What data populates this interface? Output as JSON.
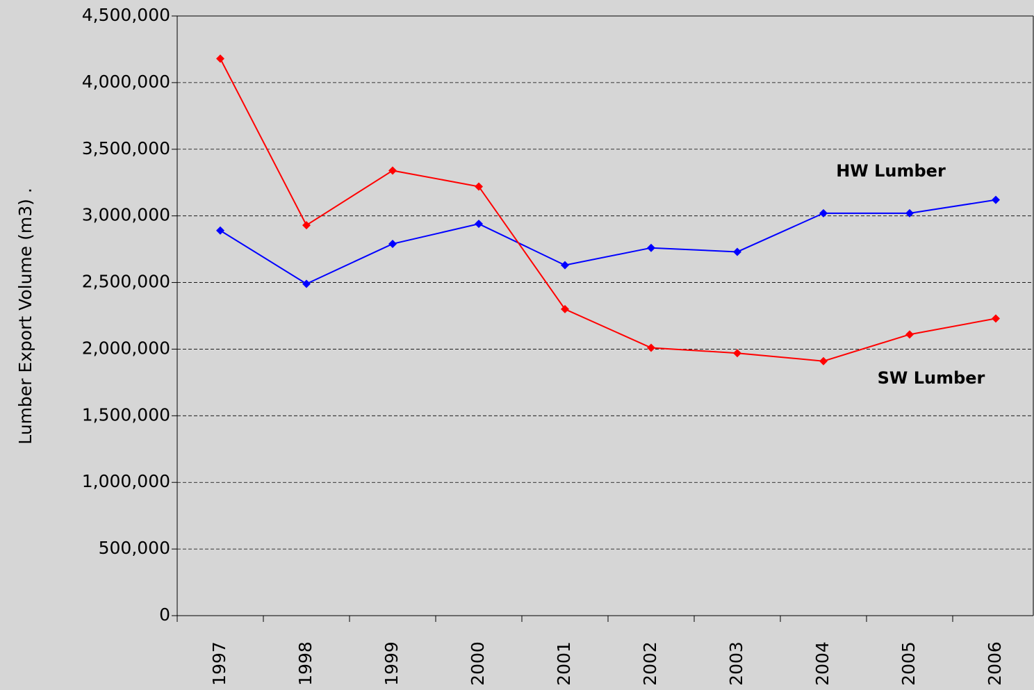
{
  "chart_data": {
    "type": "line",
    "y_label": "Lumber Export Volume (m3)   .",
    "categories": [
      "1997",
      "1998",
      "1999",
      "2000",
      "2001",
      "2002",
      "2003",
      "2004",
      "2005",
      "2006"
    ],
    "series": [
      {
        "name": "HW Lumber",
        "color": "#0000ff",
        "values": [
          2890000,
          2490000,
          2790000,
          2940000,
          2630000,
          2760000,
          2730000,
          3020000,
          3020000,
          3120000
        ]
      },
      {
        "name": "SW Lumber",
        "color": "#ff0000",
        "values": [
          4180000,
          2930000,
          3340000,
          3220000,
          2300000,
          2010000,
          1970000,
          1910000,
          2110000,
          2230000
        ]
      }
    ],
    "ylim": [
      0,
      4500000
    ],
    "yticks": [
      {
        "value": 0,
        "label": "0"
      },
      {
        "value": 500000,
        "label": "500,000"
      },
      {
        "value": 1000000,
        "label": "1,000,000"
      },
      {
        "value": 1500000,
        "label": "1,500,000"
      },
      {
        "value": 2000000,
        "label": "2,000,000"
      },
      {
        "value": 2500000,
        "label": "2,500,000"
      },
      {
        "value": 3000000,
        "label": "3,000,000"
      },
      {
        "value": 3500000,
        "label": "3,500,000"
      },
      {
        "value": 4000000,
        "label": "4,000,000"
      },
      {
        "value": 4500000,
        "label": "4,500,000"
      }
    ],
    "grid": true
  }
}
